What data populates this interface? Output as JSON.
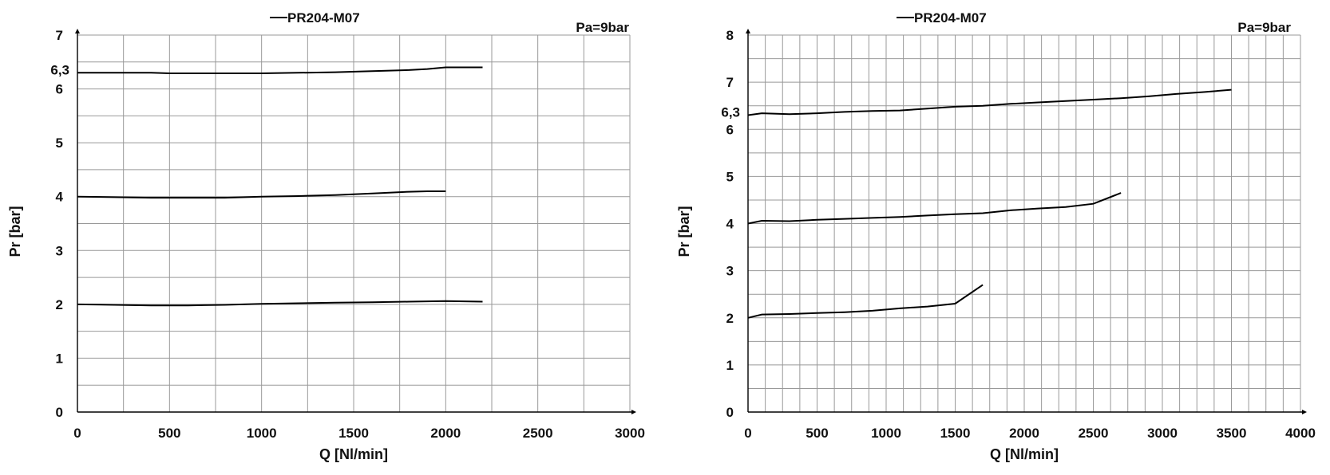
{
  "chart_data": [
    {
      "type": "line",
      "title": "PR204-M07",
      "legend": "PR204-M07",
      "annotation": "Pa=9bar",
      "xlabel": "Q [Nl/min]",
      "ylabel": "Pr [bar]",
      "xlim": [
        0,
        3000
      ],
      "ylim": [
        0,
        7
      ],
      "xticks": [
        "0",
        "500",
        "1000",
        "1500",
        "2000",
        "2500",
        "3000"
      ],
      "yticks": [
        "0",
        "1",
        "2",
        "3",
        "4",
        "5",
        "6",
        "7"
      ],
      "extra_ytick": "6,3",
      "grid": true,
      "series": [
        {
          "x": [
            0,
            100,
            400,
            500,
            800,
            1000,
            1200,
            1400,
            1600,
            1800,
            1900,
            2000,
            2100,
            2200
          ],
          "y": [
            6.3,
            6.3,
            6.3,
            6.29,
            6.29,
            6.29,
            6.3,
            6.31,
            6.33,
            6.35,
            6.37,
            6.4,
            6.4,
            6.4
          ]
        },
        {
          "x": [
            0,
            200,
            400,
            600,
            800,
            1000,
            1200,
            1400,
            1600,
            1800,
            1900,
            2000
          ],
          "y": [
            4.0,
            3.99,
            3.98,
            3.98,
            3.98,
            4.0,
            4.01,
            4.03,
            4.06,
            4.09,
            4.1,
            4.1
          ]
        },
        {
          "x": [
            0,
            200,
            400,
            600,
            800,
            1000,
            1200,
            1400,
            1600,
            1800,
            2000,
            2200
          ],
          "y": [
            2.0,
            1.99,
            1.98,
            1.98,
            1.99,
            2.01,
            2.02,
            2.03,
            2.04,
            2.05,
            2.06,
            2.05
          ]
        }
      ]
    },
    {
      "type": "line",
      "title": "PR204-M07",
      "legend": "PR204-M07",
      "annotation": "Pa=9bar",
      "xlabel": "Q [Nl/min]",
      "ylabel": "Pr [bar]",
      "xlim": [
        0,
        4000
      ],
      "ylim": [
        0,
        8
      ],
      "xticks": [
        "0",
        "500",
        "1000",
        "1500",
        "2000",
        "2500",
        "3000",
        "3500",
        "4000"
      ],
      "yticks": [
        "0",
        "1",
        "2",
        "3",
        "4",
        "5",
        "6",
        "7",
        "8"
      ],
      "extra_ytick": "6,3",
      "grid": true,
      "series": [
        {
          "x": [
            0,
            100,
            300,
            500,
            700,
            900,
            1100,
            1300,
            1500,
            1700,
            1900,
            2100,
            2300,
            2500,
            2700,
            2900,
            3100,
            3300,
            3500
          ],
          "y": [
            6.3,
            6.34,
            6.32,
            6.34,
            6.37,
            6.39,
            6.4,
            6.44,
            6.48,
            6.5,
            6.54,
            6.57,
            6.6,
            6.63,
            6.66,
            6.7,
            6.75,
            6.79,
            6.84
          ]
        },
        {
          "x": [
            0,
            100,
            300,
            500,
            700,
            900,
            1100,
            1300,
            1500,
            1700,
            1900,
            2100,
            2300,
            2500,
            2700
          ],
          "y": [
            4.0,
            4.06,
            4.05,
            4.08,
            4.1,
            4.12,
            4.14,
            4.17,
            4.2,
            4.22,
            4.28,
            4.32,
            4.35,
            4.42,
            4.65
          ]
        },
        {
          "x": [
            0,
            100,
            300,
            500,
            700,
            900,
            1100,
            1300,
            1500,
            1700
          ],
          "y": [
            2.0,
            2.07,
            2.08,
            2.1,
            2.12,
            2.15,
            2.2,
            2.24,
            2.3,
            2.7
          ]
        }
      ]
    }
  ]
}
